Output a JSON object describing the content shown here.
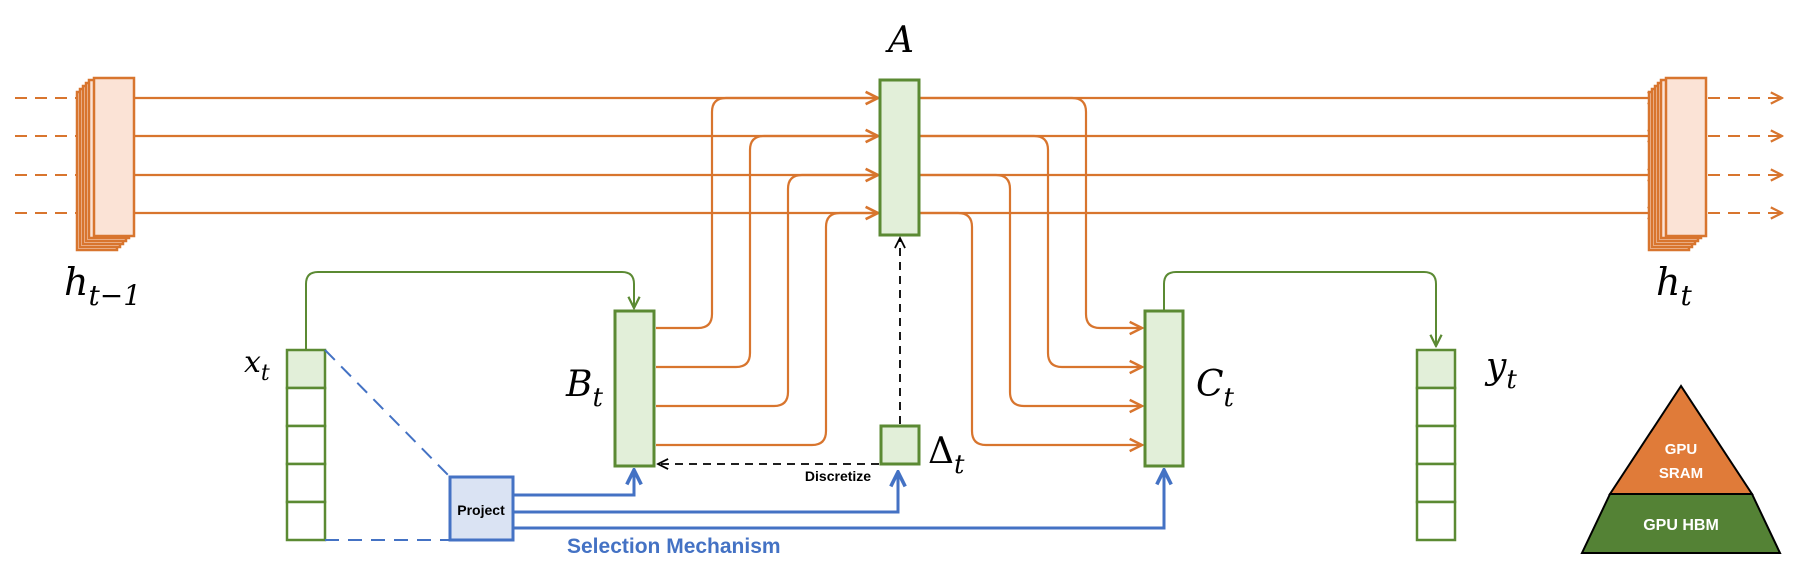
{
  "labels": {
    "A": "A",
    "h_prev_base": "h",
    "h_prev_sub": "t−1",
    "h_next_base": "h",
    "h_next_sub": "t",
    "x_base": "x",
    "x_sub": "t",
    "B_base": "B",
    "B_sub": "t",
    "C_base": "C",
    "C_sub": "t",
    "delta_base": "Δ",
    "delta_sub": "t",
    "y_base": "y",
    "y_sub": "t",
    "project": "Project",
    "discretize": "Discretize",
    "selection": "Selection Mechanism",
    "sram_line1": "GPU",
    "sram_line2": "SRAM",
    "hbm": "GPU HBM"
  },
  "colors": {
    "orange": "#d8752e",
    "orange_fill": "#fbe3d6",
    "green": "#5b8a33",
    "green_fill": "#e2efd9",
    "blue": "#4472c4",
    "blue_fill": "#dae3f3",
    "sram": "#e07b39",
    "hbm": "#548235"
  }
}
